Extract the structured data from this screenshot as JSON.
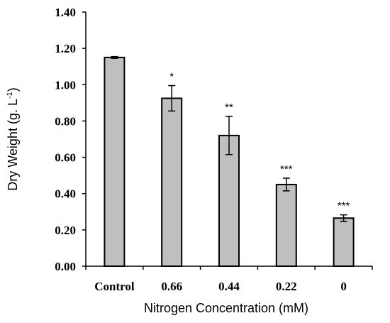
{
  "chart_data": {
    "type": "bar",
    "xlabel": "Nitrogen Concentration (mM)",
    "ylabel_main": "Dry Weight (g. L",
    "ylabel_sup": "-1",
    "ylabel_end": ")",
    "categories": [
      "Control",
      "0.66",
      "0.44",
      "0.22",
      "0"
    ],
    "values": [
      1.15,
      0.925,
      0.72,
      0.45,
      0.265
    ],
    "errors": [
      0.005,
      0.07,
      0.105,
      0.035,
      0.018
    ],
    "significance": [
      "",
      "*",
      "**",
      "***",
      "***"
    ],
    "ylim": [
      0,
      1.4
    ],
    "yticks": [
      "0.00",
      "0.20",
      "0.40",
      "0.60",
      "0.80",
      "1.00",
      "1.20",
      "1.40"
    ],
    "grid": false,
    "legend": "none",
    "colors": {
      "bar_fill": "#bfbfbf",
      "bar_stroke": "#000000",
      "axis": "#000000"
    }
  }
}
